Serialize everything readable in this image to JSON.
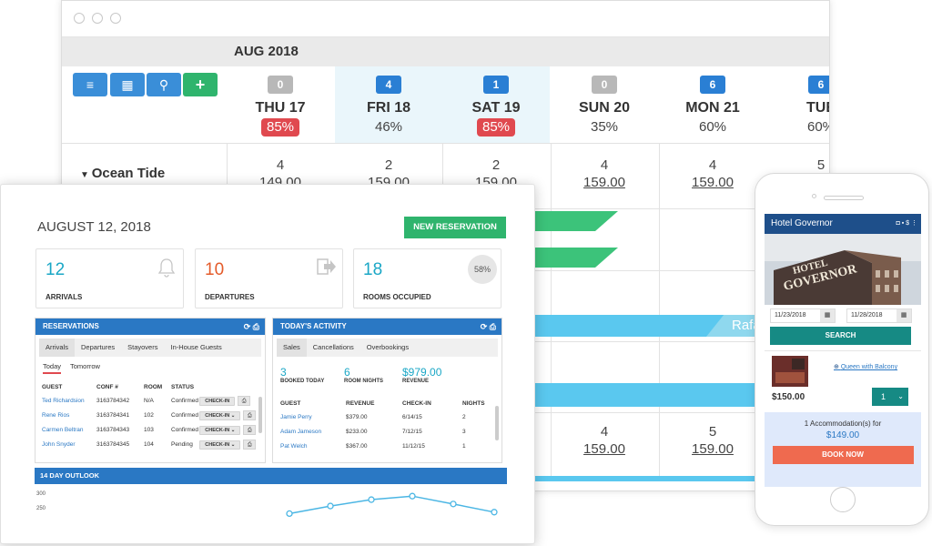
{
  "calendar": {
    "month": "AUG 2018",
    "toolbar": {
      "menu": "≡",
      "calendar": "▦",
      "search": "⚲",
      "add": "+"
    },
    "days": [
      {
        "badge": "0",
        "name": "THU 17",
        "pct": "85%",
        "red": true,
        "hl": false,
        "badge_color": "#b8b8b8"
      },
      {
        "badge": "4",
        "name": "FRI 18",
        "pct": "46%",
        "red": false,
        "hl": true,
        "badge_color": "#2a7fd4"
      },
      {
        "badge": "1",
        "name": "SAT 19",
        "pct": "85%",
        "red": true,
        "hl": true,
        "badge_color": "#2a7fd4"
      },
      {
        "badge": "0",
        "name": "SUN 20",
        "pct": "35%",
        "red": false,
        "hl": false,
        "badge_color": "#b8b8b8"
      },
      {
        "badge": "6",
        "name": "MON 21",
        "pct": "60%",
        "red": false,
        "hl": false,
        "badge_color": "#2a7fd4"
      },
      {
        "badge": "6",
        "name": "TUE",
        "pct": "60%",
        "red": false,
        "hl": false,
        "badge_color": "#2a7fd4"
      }
    ],
    "room_type": "Ocean Tide",
    "row1": [
      {
        "count": "4",
        "price": "149.00"
      },
      {
        "count": "2",
        "price": "159.00"
      },
      {
        "count": "2",
        "price": "159.00"
      },
      {
        "count": "4",
        "price": "159.00"
      },
      {
        "count": "4",
        "price": "159.00"
      },
      {
        "count": "5",
        "price": ""
      }
    ],
    "row2": [
      {
        "count": "4",
        "price": "159.00"
      },
      {
        "count": "5",
        "price": "159.00"
      }
    ],
    "booking_name": "Rafa",
    "colors": {
      "green": "#3cc37a",
      "blue": "#5ac8ef"
    }
  },
  "dashboard": {
    "date": "AUGUST 12, 2018",
    "new_reservation": "NEW RESERVATION",
    "stats": [
      {
        "value": "12",
        "label": "ARRIVALS",
        "icon": "bell-icon",
        "color": "#1aa7c6"
      },
      {
        "value": "10",
        "label": "DEPARTURES",
        "icon": "exit-icon",
        "color": "#e45b2a"
      },
      {
        "value": "18",
        "label": "ROOMS OCCUPIED",
        "pct": "58%",
        "color": "#1aa7c6"
      }
    ],
    "reservations": {
      "title": "RESERVATIONS",
      "tabs": [
        "Arrivals",
        "Departures",
        "Stayovers",
        "In-House Guests"
      ],
      "subtabs": [
        "Today",
        "Tomorrow"
      ],
      "headers": [
        "GUEST",
        "CONF #",
        "ROOM",
        "STATUS"
      ],
      "rows": [
        {
          "guest": "Ted Richardsion",
          "conf": "3163784342",
          "room": "N/A",
          "status": "Confirmed",
          "action": "CHECK-IN"
        },
        {
          "guest": "Rene Rios",
          "conf": "3163784341",
          "room": "102",
          "status": "Confirmed",
          "action": "CHECK-IN ⌄"
        },
        {
          "guest": "Carmen Beltran",
          "conf": "3163784343",
          "room": "103",
          "status": "Confirmed",
          "action": "CHECK-IN ⌄"
        },
        {
          "guest": "John Snyder",
          "conf": "3163784345",
          "room": "104",
          "status": "Pending",
          "action": "CHECK-IN ⌄"
        }
      ]
    },
    "activity": {
      "title": "TODAY'S ACTIVITY",
      "tabs": [
        "Sales",
        "Cancellations",
        "Overbookings"
      ],
      "kpis": [
        {
          "value": "3",
          "label": "BOOKED TODAY"
        },
        {
          "value": "6",
          "label": "ROOM NIGHTS"
        },
        {
          "value": "$979.00",
          "label": "REVENUE"
        }
      ],
      "headers": [
        "GUEST",
        "REVENUE",
        "CHECK-IN",
        "NIGHTS"
      ],
      "rows": [
        {
          "guest": "Jamie Perry",
          "revenue": "$379.00",
          "checkin": "6/14/15",
          "nights": "2"
        },
        {
          "guest": "Adam Jameson",
          "revenue": "$233.00",
          "checkin": "7/12/15",
          "nights": "3"
        },
        {
          "guest": "Pat Welch",
          "revenue": "$367.00",
          "checkin": "11/12/15",
          "nights": "1"
        }
      ]
    },
    "outlook": {
      "title": "14 DAY OUTLOOK",
      "yticks": [
        "300",
        "250"
      ],
      "points": [
        230,
        256,
        278,
        290,
        263,
        235
      ]
    }
  },
  "phone": {
    "hotel": "Hotel Governor",
    "sign": [
      "HOTEL",
      "GOVERNOR"
    ],
    "date_from": "11/23/2018",
    "date_to": "11/28/2018",
    "search": "SEARCH",
    "room": "Queen with Balcony",
    "price": "$150.00",
    "qty": "1",
    "summary": "1 Accommodation(s) for",
    "total": "$149.00",
    "book": "BOOK NOW"
  }
}
